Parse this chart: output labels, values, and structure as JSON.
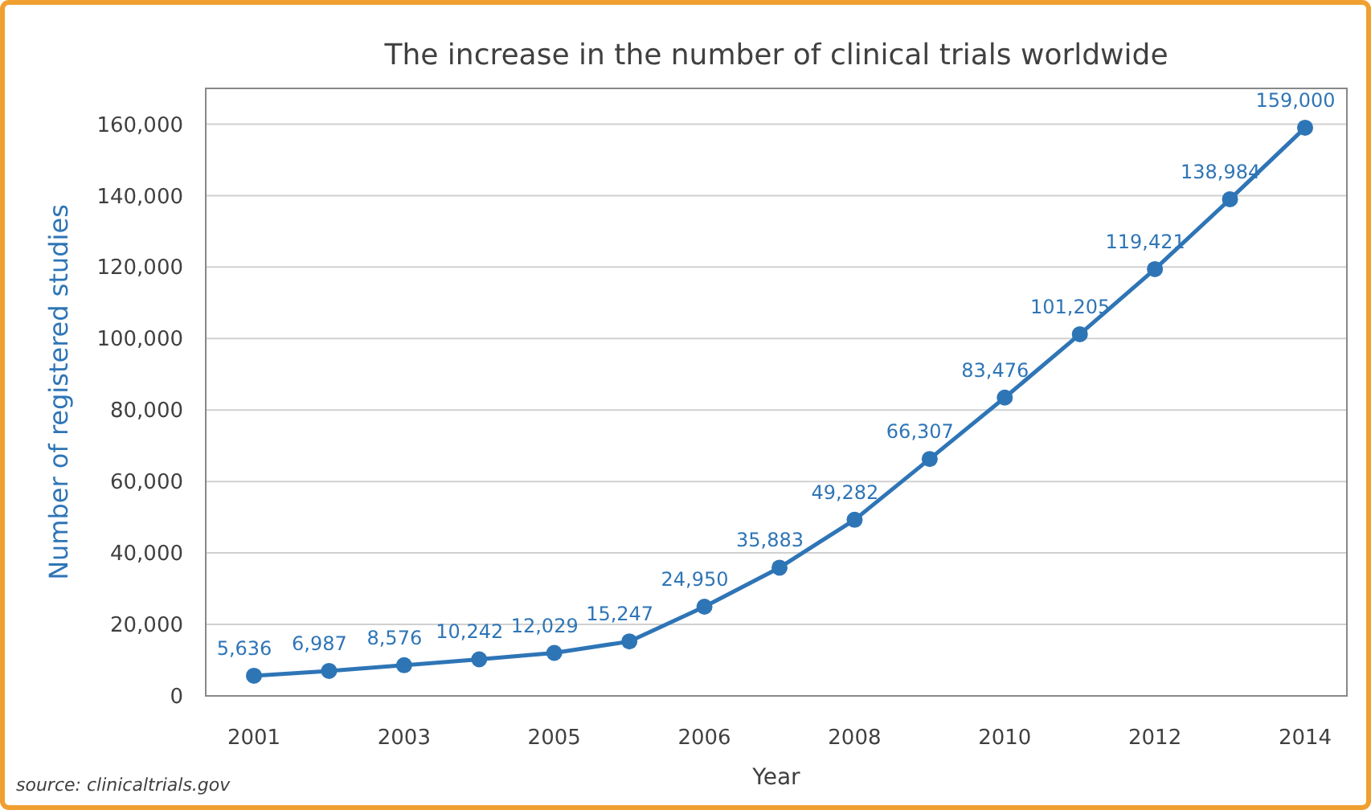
{
  "chart_data": {
    "type": "line",
    "title": "The increase in the number of clinical trials worldwide",
    "xlabel": "Year",
    "ylabel": "Number of registered studies",
    "categories": [
      "2001",
      null,
      "2003",
      null,
      "2005",
      null,
      "2006",
      null,
      "2008",
      null,
      "2010",
      null,
      "2012",
      null,
      "2014"
    ],
    "series": [
      {
        "color": "#2e75b6",
        "values": [
          5636,
          6987,
          8576,
          10242,
          12029,
          15247,
          24950,
          35883,
          49282,
          66307,
          83476,
          101205,
          119421,
          138984,
          159000
        ],
        "value_labels": [
          "5,636",
          "6,987",
          "8,576",
          "10,242",
          "12,029",
          "15,247",
          "24,950",
          "35,883",
          "49,282",
          "66,307",
          "83,476",
          "101,205",
          "119,421",
          "138,984",
          "159,000"
        ]
      }
    ],
    "ylim": [
      0,
      170000
    ],
    "yticks": [
      {
        "value": 0,
        "label": "0"
      },
      {
        "value": 20000,
        "label": "20,000"
      },
      {
        "value": 40000,
        "label": "40,000"
      },
      {
        "value": 60000,
        "label": "60,000"
      },
      {
        "value": 80000,
        "label": "80,000"
      },
      {
        "value": 100000,
        "label": "100,000"
      },
      {
        "value": 120000,
        "label": "120,000"
      },
      {
        "value": 140000,
        "label": "140,000"
      },
      {
        "value": 160000,
        "label": "160,000"
      }
    ],
    "grid": "y",
    "marker": "circle",
    "line_style": "solid",
    "annotations": [
      "source: clinicaltrials.gov"
    ]
  }
}
